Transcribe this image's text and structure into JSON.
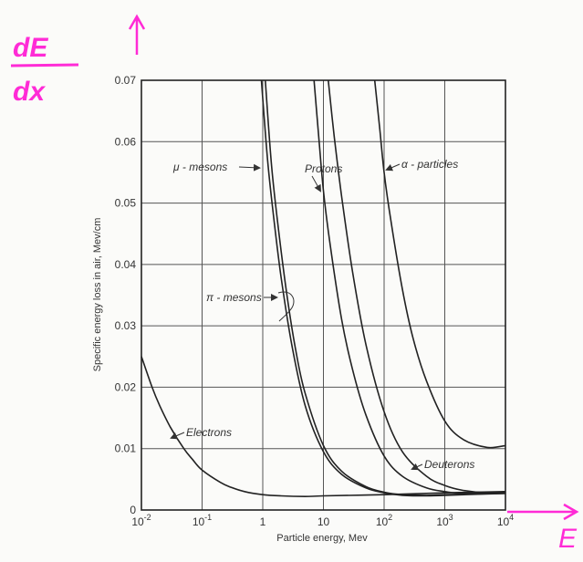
{
  "annotations": {
    "y_symbol_numerator": "dE",
    "y_symbol_denominator": "dx",
    "x_symbol": "E",
    "color": "#ff2bd6"
  },
  "chart_data": {
    "type": "line",
    "xscale": "log",
    "xlim": [
      0.01,
      10000
    ],
    "ylim": [
      0,
      0.07
    ],
    "grid": true,
    "xlabel": "Particle energy, Mev",
    "ylabel": "Specific energy loss in air, Mev/cm",
    "xticks": [
      0.01,
      0.1,
      1,
      10,
      100,
      1000,
      10000
    ],
    "xtick_labels": [
      "10^-2",
      "10^-1",
      "1",
      "10",
      "10^2",
      "10^3",
      "10^4"
    ],
    "yticks": [
      0,
      0.01,
      0.02,
      0.03,
      0.04,
      0.05,
      0.06,
      0.07
    ],
    "ytick_labels": [
      "0",
      "0.01",
      "0.02",
      "0.03",
      "0.04",
      "0.05",
      "0.06",
      "0.07"
    ],
    "series": [
      {
        "name": "Electrons",
        "x": [
          0.01,
          0.015,
          0.02,
          0.03,
          0.05,
          0.07,
          0.1,
          0.2,
          0.3,
          0.5,
          1,
          2,
          5,
          10,
          100,
          1000,
          10000
        ],
        "y": [
          0.025,
          0.02,
          0.017,
          0.0135,
          0.01,
          0.0082,
          0.0065,
          0.0045,
          0.0037,
          0.003,
          0.0025,
          0.0023,
          0.0022,
          0.0023,
          0.0025,
          0.0028,
          0.003
        ]
      },
      {
        "name": "μ - mesons",
        "x": [
          0.95,
          1.2,
          1.5,
          2,
          3,
          5,
          10,
          20,
          50,
          100,
          200,
          500,
          1000,
          10000
        ],
        "y": [
          0.07,
          0.057,
          0.048,
          0.038,
          0.027,
          0.017,
          0.0095,
          0.0058,
          0.0036,
          0.0028,
          0.0024,
          0.0023,
          0.0024,
          0.0027
        ]
      },
      {
        "name": "π - mesons",
        "x": [
          1.1,
          1.4,
          1.8,
          2.5,
          3.5,
          5,
          10,
          20,
          50,
          100,
          200,
          500,
          1000,
          10000
        ],
        "y": [
          0.07,
          0.056,
          0.046,
          0.035,
          0.026,
          0.019,
          0.0105,
          0.0063,
          0.0038,
          0.0029,
          0.0025,
          0.0024,
          0.0025,
          0.0027
        ]
      },
      {
        "name": "Protons",
        "x": [
          7,
          8.5,
          10,
          13,
          20,
          30,
          50,
          100,
          200,
          500,
          1000,
          2000,
          10000
        ],
        "y": [
          0.07,
          0.06,
          0.052,
          0.043,
          0.031,
          0.023,
          0.0155,
          0.0088,
          0.0055,
          0.0036,
          0.003,
          0.0027,
          0.0028
        ]
      },
      {
        "name": "Deuterons",
        "x": [
          12,
          15,
          20,
          30,
          50,
          100,
          200,
          500,
          1000,
          2000,
          5000,
          10000
        ],
        "y": [
          0.07,
          0.061,
          0.051,
          0.039,
          0.027,
          0.016,
          0.0095,
          0.0055,
          0.004,
          0.0032,
          0.0028,
          0.003
        ]
      },
      {
        "name": "α - particles",
        "x": [
          70,
          85,
          100,
          130,
          200,
          300,
          500,
          1000,
          2000,
          5000,
          10000
        ],
        "y": [
          0.07,
          0.062,
          0.055,
          0.047,
          0.036,
          0.028,
          0.021,
          0.0145,
          0.0115,
          0.0102,
          0.0105
        ]
      }
    ],
    "curve_labels": [
      {
        "text": "μ - mesons",
        "series": 1
      },
      {
        "text": "Protons",
        "series": 3
      },
      {
        "text": "α - particles",
        "series": 5
      },
      {
        "text": "π - mesons",
        "series": 2
      },
      {
        "text": "Electrons",
        "series": 0
      },
      {
        "text": "Deuterons",
        "series": 4
      }
    ]
  }
}
